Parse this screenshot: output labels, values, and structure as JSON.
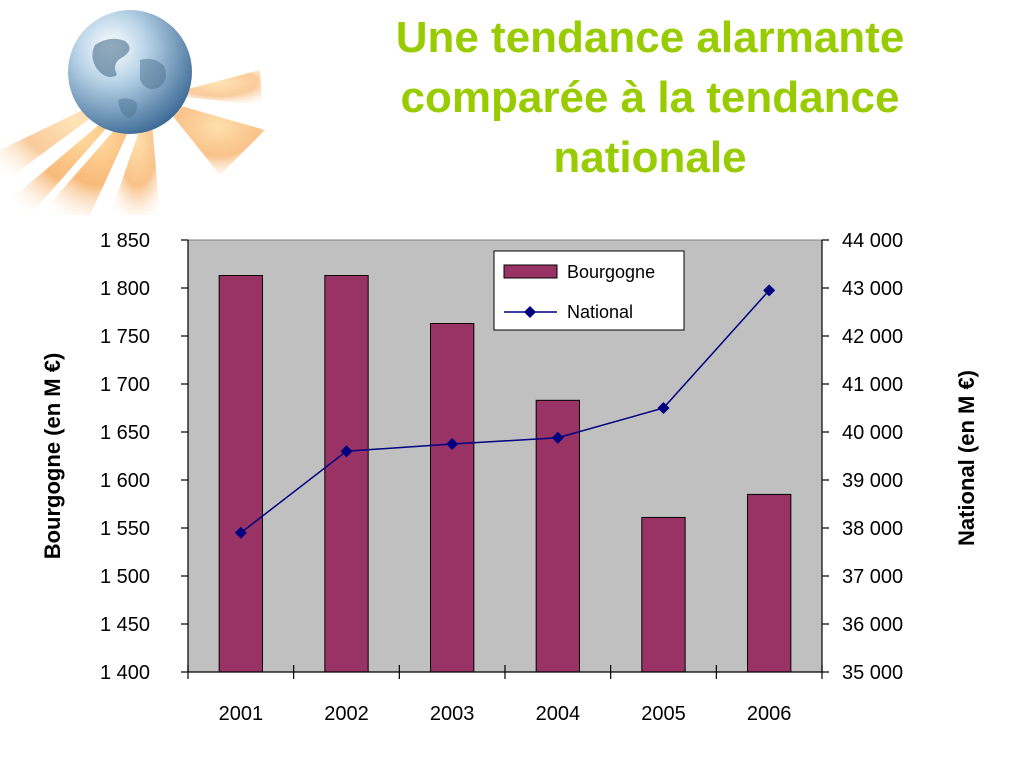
{
  "title_lines": [
    "Une tendance alarmante",
    "comparée à la tendance",
    "nationale"
  ],
  "colors": {
    "title": "#99cc00",
    "plot_background": "#c0c0c0",
    "bar_fill": "#993366",
    "line": "#000080"
  },
  "chart_data": {
    "type": "bar+line",
    "categories": [
      "2001",
      "2002",
      "2003",
      "2004",
      "2005",
      "2006"
    ],
    "series": [
      {
        "name": "Bourgogne",
        "type": "bar",
        "axis": "left",
        "values": [
          1813,
          1813,
          1763,
          1683,
          1561,
          1585
        ]
      },
      {
        "name": "National",
        "type": "line",
        "axis": "right",
        "values": [
          37900,
          39600,
          39750,
          39880,
          40500,
          42950
        ]
      }
    ],
    "y_left": {
      "label": "Bourgogne (en M €)",
      "ylim": [
        1400,
        1850
      ],
      "ticks": [
        1400,
        1450,
        1500,
        1550,
        1600,
        1650,
        1700,
        1750,
        1800,
        1850
      ],
      "tick_labels": [
        "1 400",
        "1 450",
        "1 500",
        "1 550",
        "1 600",
        "1 650",
        "1 700",
        "1 750",
        "1 800",
        "1 850"
      ]
    },
    "y_right": {
      "label": "National (en M €)",
      "ylim": [
        35000,
        44000
      ],
      "ticks": [
        35000,
        36000,
        37000,
        38000,
        39000,
        40000,
        41000,
        42000,
        43000,
        44000
      ],
      "tick_labels": [
        "35 000",
        "36 000",
        "37 000",
        "38 000",
        "39 000",
        "40 000",
        "41 000",
        "42 000",
        "43 000",
        "44 000"
      ]
    },
    "legend": {
      "placement": "top-right",
      "entries": [
        "Bourgogne",
        "National"
      ]
    },
    "grid": false
  }
}
